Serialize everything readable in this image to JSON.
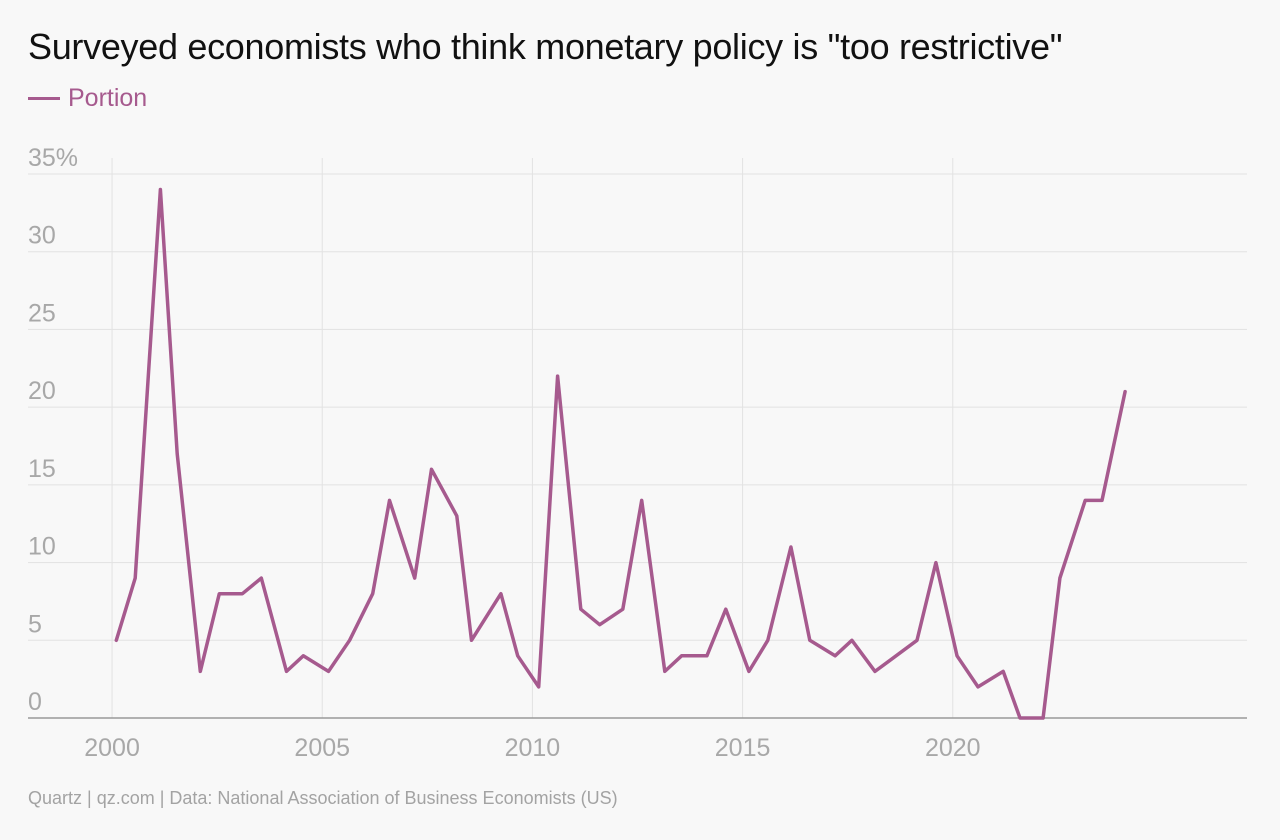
{
  "title": "Surveyed economists who think monetary policy is \"too restrictive\"",
  "footer": "Quartz | qz.com | Data: National Association of Business Economists (US)",
  "colors": {
    "series": "#a65a8e",
    "grid": "#e2e2e2",
    "axis": "#999999",
    "tick_text": "#a8a8a8"
  },
  "chart_data": {
    "type": "line",
    "legend": [
      "Portion"
    ],
    "legend_position": "top-left",
    "grid": true,
    "ylim": [
      0,
      35
    ],
    "xlim": [
      1998,
      2027
    ],
    "y_ticks": [
      0,
      5,
      10,
      15,
      20,
      25,
      30,
      35
    ],
    "y_tick_labels": [
      "0",
      "5",
      "10",
      "15",
      "20",
      "25",
      "30",
      "35%"
    ],
    "x_ticks": [
      2000,
      2005,
      2010,
      2015,
      2020
    ],
    "x_tick_labels": [
      "2000",
      "2005",
      "2010",
      "2015",
      "2020"
    ],
    "series": [
      {
        "name": "Portion",
        "points": [
          [
            2000.1,
            5
          ],
          [
            2000.55,
            9
          ],
          [
            2001.15,
            34
          ],
          [
            2001.55,
            17
          ],
          [
            2002.1,
            3
          ],
          [
            2002.55,
            8
          ],
          [
            2003.1,
            8
          ],
          [
            2003.55,
            9
          ],
          [
            2004.15,
            3
          ],
          [
            2004.55,
            4
          ],
          [
            2005.15,
            3
          ],
          [
            2005.65,
            5
          ],
          [
            2006.2,
            8
          ],
          [
            2006.6,
            14
          ],
          [
            2007.2,
            9
          ],
          [
            2007.6,
            16
          ],
          [
            2008.2,
            13
          ],
          [
            2008.55,
            5
          ],
          [
            2009.25,
            8
          ],
          [
            2009.65,
            4
          ],
          [
            2010.15,
            2
          ],
          [
            2010.6,
            22
          ],
          [
            2011.15,
            7
          ],
          [
            2011.6,
            6
          ],
          [
            2012.15,
            7
          ],
          [
            2012.6,
            14
          ],
          [
            2013.15,
            3
          ],
          [
            2013.55,
            4
          ],
          [
            2014.15,
            4
          ],
          [
            2014.6,
            7
          ],
          [
            2015.15,
            3
          ],
          [
            2015.6,
            5
          ],
          [
            2016.15,
            11
          ],
          [
            2016.6,
            5
          ],
          [
            2017.2,
            4
          ],
          [
            2017.6,
            5
          ],
          [
            2018.15,
            3
          ],
          [
            2019.15,
            5
          ],
          [
            2019.6,
            10
          ],
          [
            2020.1,
            4
          ],
          [
            2020.6,
            2
          ],
          [
            2021.2,
            3
          ],
          [
            2021.6,
            0
          ],
          [
            2022.15,
            0
          ],
          [
            2022.55,
            9
          ],
          [
            2023.15,
            14
          ],
          [
            2023.55,
            14
          ],
          [
            2024.1,
            21
          ]
        ]
      }
    ]
  }
}
